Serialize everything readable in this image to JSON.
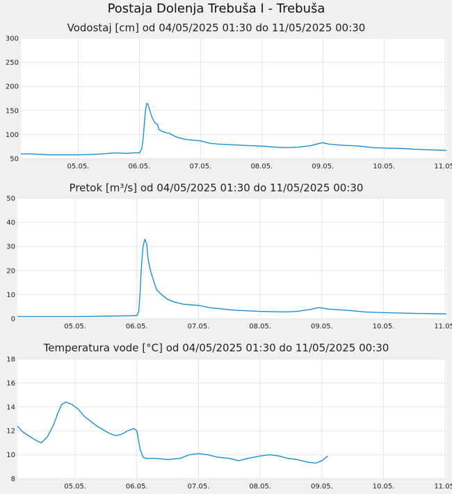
{
  "page_title": "Postaja Dolenja Trebuša I - Trebuša",
  "colors": {
    "line": "#1a8fd6",
    "grid": "#e6e6e6",
    "plot_bg": "#ffffff",
    "page_bg": "#f0f0f0"
  },
  "x_ticks": [
    "05.05.",
    "06.05.",
    "07.05.",
    "08.05.",
    "09.05.",
    "10.05.",
    "11.05."
  ],
  "chart_data": [
    {
      "type": "line",
      "title": "Vodostaj [cm] od 04/05/2025 01:30 do 11/05/2025 00:30",
      "x_unit": "days since 04.05. 00:00",
      "xlim": [
        0.0625,
        7.02
      ],
      "ylim": [
        50,
        300
      ],
      "yticks": [
        "50",
        "100",
        "150",
        "200",
        "250",
        "300"
      ],
      "grid": true,
      "series": [
        {
          "points": [
            [
              0.0625,
              60
            ],
            [
              0.3,
              59.5
            ],
            [
              0.5,
              58
            ],
            [
              1.0,
              58
            ],
            [
              1.2,
              58.5
            ],
            [
              1.4,
              60
            ],
            [
              1.6,
              62
            ],
            [
              1.8,
              61
            ],
            [
              1.9,
              62
            ],
            [
              2.0,
              62
            ],
            [
              2.04,
              70
            ],
            [
              2.06,
              90
            ],
            [
              2.08,
              120
            ],
            [
              2.1,
              150
            ],
            [
              2.12,
              165
            ],
            [
              2.14,
              163
            ],
            [
              2.17,
              150
            ],
            [
              2.21,
              135
            ],
            [
              2.25,
              125
            ],
            [
              2.3,
              120
            ],
            [
              2.32,
              110
            ],
            [
              2.4,
              105
            ],
            [
              2.5,
              102
            ],
            [
              2.6,
              95
            ],
            [
              2.75,
              90
            ],
            [
              3.0,
              87
            ],
            [
              3.15,
              82
            ],
            [
              3.3,
              80
            ],
            [
              3.5,
              79
            ],
            [
              3.8,
              77
            ],
            [
              4.0,
              76
            ],
            [
              4.2,
              74
            ],
            [
              4.4,
              73
            ],
            [
              4.6,
              74
            ],
            [
              4.8,
              77
            ],
            [
              4.95,
              82
            ],
            [
              5.0,
              83
            ],
            [
              5.1,
              80
            ],
            [
              5.3,
              78
            ],
            [
              5.6,
              76
            ],
            [
              5.8,
              73
            ],
            [
              6.0,
              72
            ],
            [
              6.3,
              71
            ],
            [
              6.6,
              69
            ],
            [
              7.02,
              67
            ]
          ]
        }
      ]
    },
    {
      "type": "line",
      "title": "Pretok [m³/s] od 04/05/2025 01:30 do 11/05/2025 00:30",
      "x_unit": "days since 04.05. 00:00",
      "xlim": [
        0.0625,
        7.02
      ],
      "ylim": [
        0,
        50
      ],
      "yticks": [
        "0",
        "10",
        "20",
        "30",
        "40",
        "50"
      ],
      "grid": true,
      "series": [
        {
          "points": [
            [
              0.0625,
              0.9
            ],
            [
              1.0,
              0.9
            ],
            [
              1.4,
              1.0
            ],
            [
              1.9,
              1.2
            ],
            [
              2.0,
              1.3
            ],
            [
              2.03,
              3
            ],
            [
              2.05,
              10
            ],
            [
              2.07,
              20
            ],
            [
              2.1,
              30
            ],
            [
              2.13,
              33
            ],
            [
              2.16,
              31
            ],
            [
              2.18,
              25
            ],
            [
              2.22,
              20
            ],
            [
              2.28,
              15
            ],
            [
              2.32,
              12
            ],
            [
              2.4,
              10
            ],
            [
              2.5,
              8
            ],
            [
              2.6,
              7
            ],
            [
              2.75,
              6
            ],
            [
              3.0,
              5.5
            ],
            [
              3.2,
              4.5
            ],
            [
              3.4,
              4
            ],
            [
              3.6,
              3.5
            ],
            [
              4.0,
              3
            ],
            [
              4.4,
              2.8
            ],
            [
              4.6,
              3
            ],
            [
              4.8,
              3.8
            ],
            [
              4.95,
              4.6
            ],
            [
              5.1,
              4
            ],
            [
              5.4,
              3.5
            ],
            [
              5.7,
              2.8
            ],
            [
              6.0,
              2.5
            ],
            [
              6.5,
              2.2
            ],
            [
              7.02,
              2
            ]
          ]
        }
      ]
    },
    {
      "type": "line",
      "title": "Temperatura vode [°C] od 04/05/2025 01:30 do 11/05/2025 00:30",
      "x_unit": "days since 04.05. 00:00",
      "xlim": [
        0.0625,
        7.02
      ],
      "ylim": [
        8,
        18
      ],
      "yticks": [
        "8",
        "10",
        "12",
        "14",
        "16",
        "18"
      ],
      "grid": true,
      "series": [
        {
          "points": [
            [
              0.0625,
              12.4
            ],
            [
              0.15,
              11.9
            ],
            [
              0.3,
              11.4
            ],
            [
              0.4,
              11.1
            ],
            [
              0.45,
              11.0
            ],
            [
              0.55,
              11.5
            ],
            [
              0.65,
              12.5
            ],
            [
              0.72,
              13.5
            ],
            [
              0.78,
              14.2
            ],
            [
              0.85,
              14.4
            ],
            [
              0.95,
              14.2
            ],
            [
              1.05,
              13.8
            ],
            [
              1.15,
              13.2
            ],
            [
              1.25,
              12.8
            ],
            [
              1.35,
              12.4
            ],
            [
              1.45,
              12.1
            ],
            [
              1.55,
              11.8
            ],
            [
              1.65,
              11.6
            ],
            [
              1.75,
              11.7
            ],
            [
              1.85,
              12.0
            ],
            [
              1.95,
              12.2
            ],
            [
              2.0,
              12.0
            ],
            [
              2.05,
              10.5
            ],
            [
              2.1,
              9.8
            ],
            [
              2.15,
              9.7
            ],
            [
              2.3,
              9.7
            ],
            [
              2.5,
              9.6
            ],
            [
              2.7,
              9.7
            ],
            [
              2.85,
              10.0
            ],
            [
              3.0,
              10.1
            ],
            [
              3.15,
              10.0
            ],
            [
              3.3,
              9.8
            ],
            [
              3.5,
              9.7
            ],
            [
              3.65,
              9.5
            ],
            [
              3.8,
              9.7
            ],
            [
              4.0,
              9.9
            ],
            [
              4.15,
              10.0
            ],
            [
              4.3,
              9.9
            ],
            [
              4.45,
              9.7
            ],
            [
              4.6,
              9.6
            ],
            [
              4.75,
              9.4
            ],
            [
              4.9,
              9.3
            ],
            [
              5.0,
              9.5
            ],
            [
              5.1,
              9.9
            ]
          ]
        }
      ]
    }
  ]
}
